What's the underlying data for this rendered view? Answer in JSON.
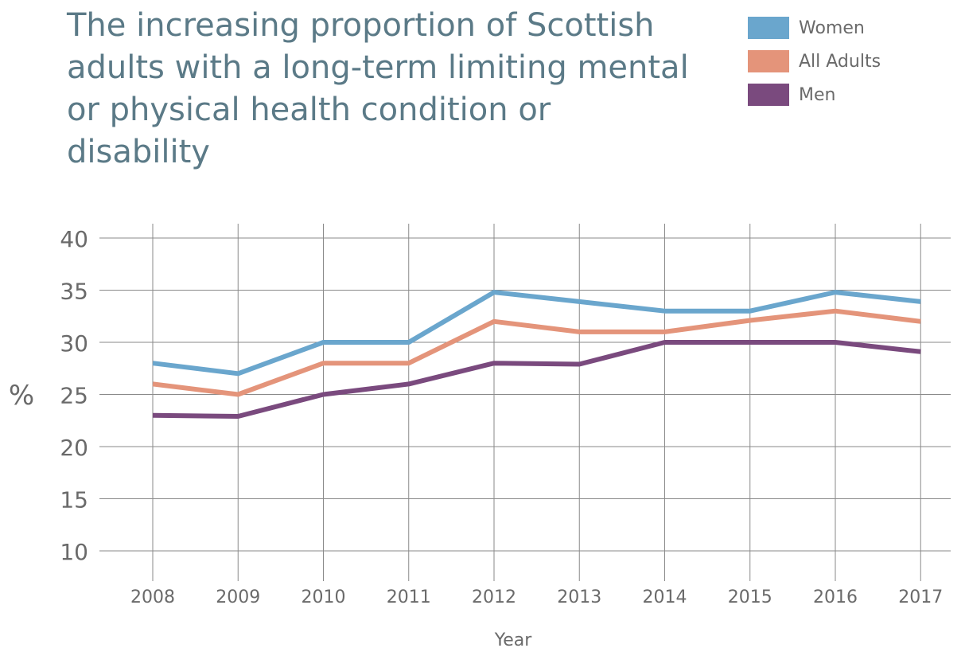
{
  "chart_data": {
    "type": "line",
    "title": "The increasing proportion of Scottish adults with a long-term limiting mental or physical health condition or disability",
    "xlabel": "Year",
    "ylabel": "%",
    "x": [
      "2008",
      "2009",
      "2010",
      "2011",
      "2012",
      "2013",
      "2014",
      "2015",
      "2016",
      "2017"
    ],
    "yticks": [
      "10",
      "15",
      "20",
      "25",
      "30",
      "35",
      "40"
    ],
    "ylim": [
      10,
      40
    ],
    "grid": true,
    "legend_position": "top-right",
    "series": [
      {
        "name": "Women",
        "color": "#6aa6cd",
        "values": [
          28,
          27,
          30,
          30,
          34.8,
          33.9,
          33,
          33,
          34.8,
          33.9
        ]
      },
      {
        "name": "All Adults",
        "color": "#e4947a",
        "values": [
          26,
          25,
          28,
          28,
          32,
          31,
          31,
          32.1,
          33,
          32
        ]
      },
      {
        "name": "Men",
        "color": "#7a4a7e",
        "values": [
          23,
          22.9,
          25,
          26,
          28,
          27.9,
          30,
          30,
          30,
          29.1
        ]
      }
    ]
  }
}
